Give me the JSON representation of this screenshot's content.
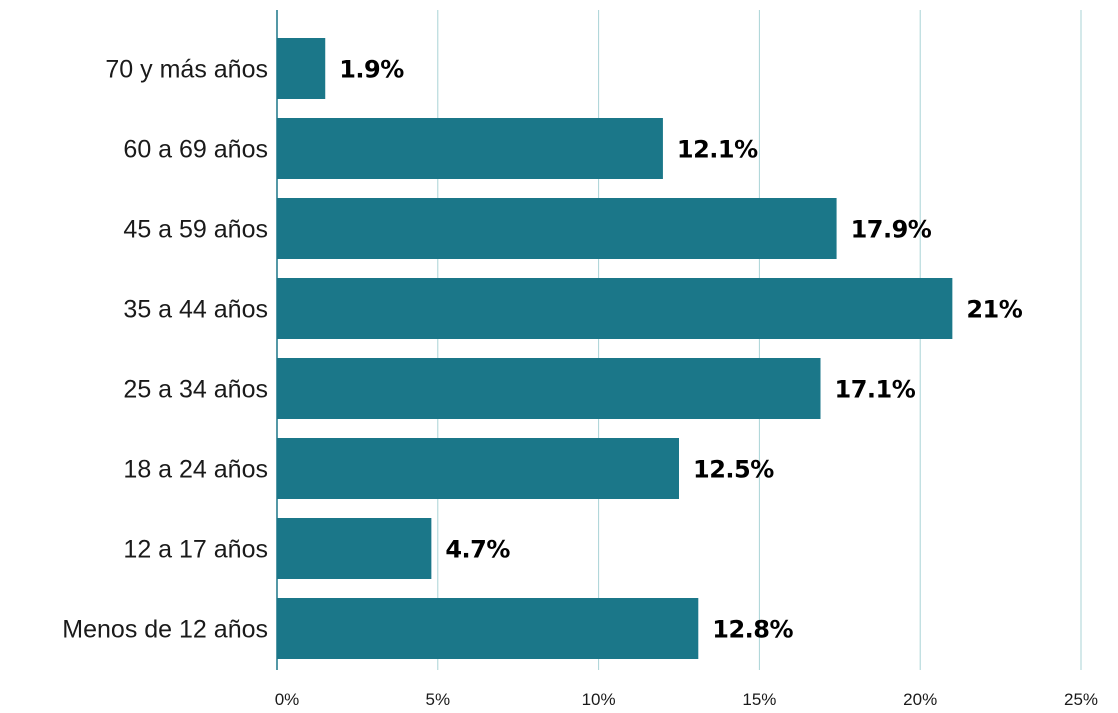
{
  "chart_data": {
    "type": "bar",
    "orientation": "horizontal",
    "categories": [
      "70 y más años",
      "60 a 69 años",
      "45 a 59 años",
      "35 a 44 años",
      "25 a 34 años",
      "18 a 24 años",
      "12 a 17 años",
      "Menos de 12 años"
    ],
    "values": [
      1.9,
      12.1,
      17.9,
      21,
      17.1,
      12.5,
      4.7,
      12.8
    ],
    "data_labels": [
      "1.9%",
      "12.1%",
      "17.9%",
      "21%",
      "17.1%",
      "12.5%",
      "4.7%",
      "12.8%"
    ],
    "bar_lengths_pct": [
      1.5,
      12,
      17.4,
      21,
      16.9,
      12.5,
      4.8,
      13.1
    ],
    "xlim": [
      0,
      25
    ],
    "xticks": [
      0,
      5,
      10,
      15,
      20,
      25
    ],
    "xtick_labels": [
      "0%",
      "5%",
      "10%",
      "15%",
      "20%",
      "25%"
    ],
    "title": "",
    "xlabel": "",
    "ylabel": "",
    "grid": "vertical",
    "legend": "none",
    "colors": {
      "bar": "#1b7789",
      "grid": "#a9d3d6",
      "axis": "#1b7789",
      "label": "#000000"
    }
  }
}
